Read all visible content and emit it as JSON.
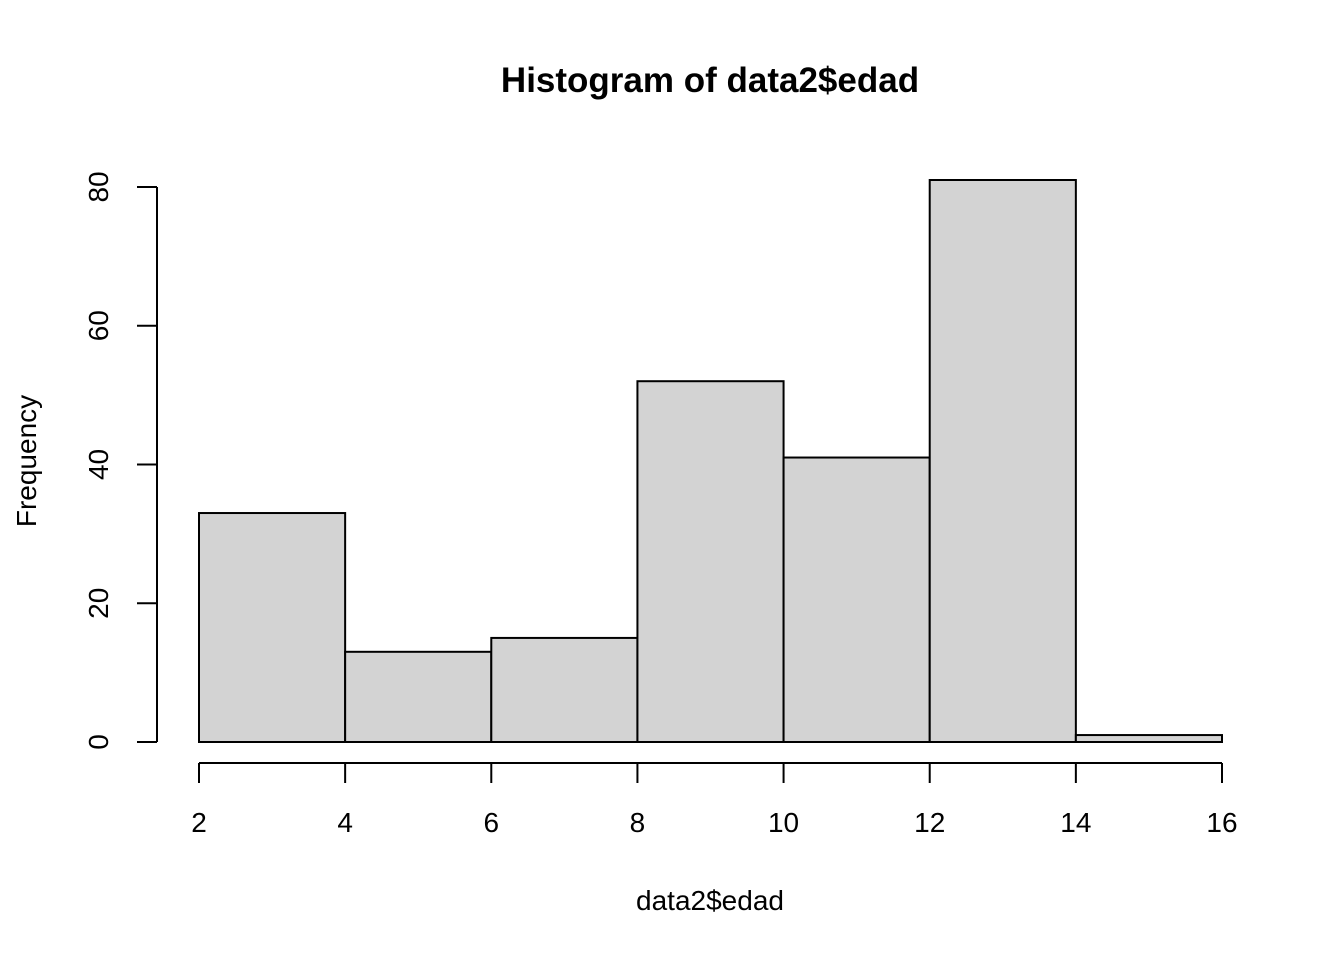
{
  "chart_data": {
    "type": "bar",
    "title": "Histogram of data2$edad",
    "xlabel": "data2$edad",
    "ylabel": "Frequency",
    "bins": [
      {
        "from": 2,
        "to": 4,
        "count": 33
      },
      {
        "from": 4,
        "to": 6,
        "count": 13
      },
      {
        "from": 6,
        "to": 8,
        "count": 15
      },
      {
        "from": 8,
        "to": 10,
        "count": 52
      },
      {
        "from": 10,
        "to": 12,
        "count": 41
      },
      {
        "from": 12,
        "to": 14,
        "count": 81
      },
      {
        "from": 14,
        "to": 16,
        "count": 1
      }
    ],
    "x_ticks": [
      "2",
      "4",
      "6",
      "8",
      "10",
      "12",
      "14",
      "16"
    ],
    "y_ticks": [
      "0",
      "20",
      "40",
      "60",
      "80"
    ],
    "xlim": [
      2,
      16
    ],
    "ylim": [
      0,
      81
    ],
    "grid": false,
    "bar_color": "#d3d3d3",
    "border_color": "#000000"
  }
}
